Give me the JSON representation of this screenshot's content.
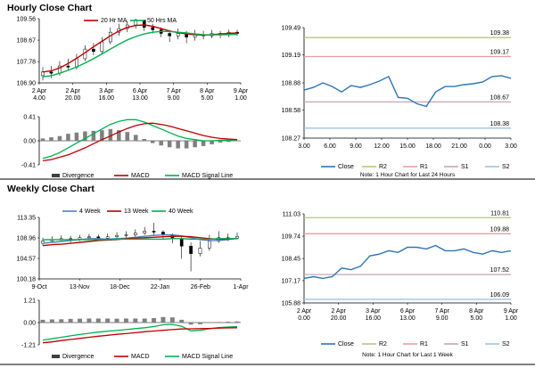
{
  "sections": {
    "hourly_title": "Hourly Close Chart",
    "weekly_title": "Weekly Close Chart"
  },
  "colors": {
    "close": "#2e75b6",
    "ma_short": "#c00000",
    "ma_long": "#00b050",
    "r2": "#b5c77e",
    "r1": "#e8a0a0",
    "s1": "#c9a6b4",
    "s2": "#9dc3e6",
    "divergence": "#808080",
    "ma4": "#4f81bd",
    "ma40": "#00b050"
  },
  "chart_data": [
    {
      "id": "hourly_price",
      "type": "candlestick",
      "y_ticks": [
        "109.56",
        "108.67",
        "107.78",
        "106.90"
      ],
      "ylim": [
        106.9,
        109.56
      ],
      "x_ticks": [
        [
          "2 Apr",
          "4.00"
        ],
        [
          "2 Apr",
          "20.00"
        ],
        [
          "3 Apr",
          "16.00"
        ],
        [
          "6 Apr",
          "13.00"
        ],
        [
          "7 Apr",
          "9.00"
        ],
        [
          "8 Apr",
          "5.00"
        ],
        [
          "9 Apr",
          "1.00"
        ]
      ],
      "legend": [
        "20 Hr MA",
        "50 Hrs MA"
      ],
      "ma20": [
        107.35,
        107.4,
        107.52,
        107.7,
        107.92,
        108.15,
        108.4,
        108.62,
        108.85,
        109.05,
        109.2,
        109.28,
        109.3,
        109.25,
        109.15,
        109.05,
        108.98,
        108.93,
        108.9,
        108.88,
        108.9,
        108.93,
        108.95,
        108.97
      ],
      "ma50": [
        107.15,
        107.2,
        107.3,
        107.42,
        107.56,
        107.72,
        107.9,
        108.1,
        108.3,
        108.5,
        108.68,
        108.82,
        108.93,
        109.0,
        109.03,
        109.03,
        109.0,
        108.97,
        108.93,
        108.9,
        108.89,
        108.89,
        108.9,
        108.91
      ],
      "candles": [
        [
          107.2,
          107.35,
          107.55,
          107.0
        ],
        [
          107.35,
          107.3,
          107.6,
          107.1
        ],
        [
          107.3,
          107.6,
          107.8,
          107.2
        ],
        [
          107.6,
          107.55,
          107.9,
          107.4
        ],
        [
          107.55,
          107.9,
          108.1,
          107.45
        ],
        [
          107.9,
          108.3,
          108.45,
          107.8
        ],
        [
          108.3,
          108.2,
          108.55,
          108.05
        ],
        [
          108.2,
          108.6,
          108.8,
          108.1
        ],
        [
          108.6,
          109.0,
          109.2,
          108.5
        ],
        [
          109.0,
          109.15,
          109.35,
          108.85
        ],
        [
          109.15,
          109.3,
          109.45,
          109.0
        ],
        [
          109.3,
          109.5,
          109.56,
          109.15
        ],
        [
          109.5,
          109.2,
          109.52,
          109.05
        ],
        [
          109.2,
          109.1,
          109.35,
          108.95
        ],
        [
          109.1,
          108.95,
          109.2,
          108.8
        ],
        [
          108.95,
          108.85,
          109.1,
          108.6
        ],
        [
          108.85,
          108.95,
          109.15,
          108.7
        ],
        [
          108.95,
          108.8,
          109.05,
          108.55
        ],
        [
          108.8,
          108.9,
          109.1,
          108.65
        ],
        [
          108.9,
          108.85,
          109.05,
          108.7
        ],
        [
          108.85,
          108.95,
          109.1,
          108.75
        ],
        [
          108.95,
          108.9,
          109.05,
          108.75
        ],
        [
          108.9,
          109.0,
          109.1,
          108.8
        ],
        [
          109.0,
          108.95,
          109.1,
          108.85
        ]
      ]
    },
    {
      "id": "hourly_macd",
      "type": "line_bar",
      "y_ticks": [
        "0.41",
        "0.00",
        "-0.41"
      ],
      "ylim": [
        -0.41,
        0.41
      ],
      "legend": [
        "Divergence",
        "MACD",
        "MACD Signal Line"
      ],
      "macd": [
        -0.3,
        -0.26,
        -0.2,
        -0.12,
        -0.04,
        0.04,
        0.12,
        0.2,
        0.28,
        0.33,
        0.36,
        0.36,
        0.32,
        0.26,
        0.2,
        0.14,
        0.08,
        0.04,
        0.02,
        0.0,
        0.0,
        0.01,
        0.01,
        0.02
      ],
      "signal": [
        -0.34,
        -0.32,
        -0.28,
        -0.24,
        -0.18,
        -0.12,
        -0.05,
        0.02,
        0.08,
        0.15,
        0.21,
        0.26,
        0.29,
        0.3,
        0.28,
        0.25,
        0.21,
        0.17,
        0.13,
        0.09,
        0.06,
        0.04,
        0.03,
        0.02
      ],
      "divergence": [
        0.04,
        0.06,
        0.08,
        0.12,
        0.14,
        0.16,
        0.17,
        0.18,
        0.2,
        0.18,
        0.15,
        0.1,
        0.03,
        -0.04,
        -0.08,
        -0.11,
        -0.13,
        -0.13,
        -0.11,
        -0.09,
        -0.06,
        -0.03,
        -0.02,
        0.0
      ]
    },
    {
      "id": "hourly_close_levels",
      "type": "line",
      "y_ticks": [
        "109.49",
        "109.19",
        "108.88",
        "108.58",
        "108.27"
      ],
      "ylim": [
        108.27,
        109.49
      ],
      "x_ticks": [
        "3.00",
        "6.00",
        "9.00",
        "12.00",
        "15.00",
        "18.00",
        "21.00",
        "0.00",
        "3.00"
      ],
      "levels": [
        {
          "name": "R2",
          "value": 109.38,
          "label": "109.38"
        },
        {
          "name": "R1",
          "value": 109.17,
          "label": "109.17"
        },
        {
          "name": "S1",
          "value": 108.67,
          "label": "108.67"
        },
        {
          "name": "S2",
          "value": 108.38,
          "label": "108.38"
        }
      ],
      "close": [
        108.8,
        108.83,
        108.88,
        108.84,
        108.78,
        108.85,
        108.83,
        108.86,
        108.9,
        108.95,
        108.72,
        108.71,
        108.65,
        108.62,
        108.78,
        108.84,
        108.84,
        108.86,
        108.87,
        108.89,
        108.95,
        108.96,
        108.93
      ],
      "legend": [
        "Close",
        "R2",
        "R1",
        "S1",
        "S2"
      ],
      "note": "Note: 1 Hour Chart for Last 24 Hours"
    },
    {
      "id": "weekly_price",
      "type": "candlestick",
      "y_ticks": [
        "113.35",
        "108.96",
        "104.57",
        "100.18"
      ],
      "ylim": [
        100.18,
        113.35
      ],
      "x_ticks": [
        "9-Oct",
        "13-Nov",
        "18-Dec",
        "22-Jan",
        "26-Feb",
        "1-Apr"
      ],
      "legend": [
        "4 Week",
        "13 Week",
        "40 Week"
      ],
      "ma4": [
        107.8,
        108.0,
        108.2,
        108.4,
        108.6,
        108.8,
        108.8,
        108.7,
        108.8,
        108.9,
        109.1,
        109.3,
        109.5,
        109.6,
        109.6,
        109.4,
        109.0,
        108.6,
        108.4,
        108.4,
        108.6,
        108.9
      ],
      "ma13": [
        107.3,
        107.5,
        107.6,
        107.8,
        108.0,
        108.2,
        108.4,
        108.5,
        108.6,
        108.8,
        108.9,
        109.0,
        109.1,
        109.2,
        109.3,
        109.3,
        109.2,
        109.0,
        108.8,
        108.7,
        108.7,
        108.8
      ],
      "ma40": [
        108.6,
        108.6,
        108.6,
        108.6,
        108.6,
        108.6,
        108.6,
        108.6,
        108.7,
        108.7,
        108.7,
        108.7,
        108.7,
        108.7,
        108.8,
        108.8,
        108.7,
        108.7,
        108.7,
        108.8,
        108.8,
        108.8
      ],
      "candles": [
        [
          107.8,
          108.3,
          109.0,
          107.3
        ],
        [
          108.3,
          108.6,
          109.3,
          107.9
        ],
        [
          108.6,
          108.8,
          109.5,
          108.2
        ],
        [
          108.8,
          108.7,
          109.4,
          108.0
        ],
        [
          108.7,
          109.0,
          109.6,
          108.3
        ],
        [
          109.0,
          109.2,
          109.8,
          108.6
        ],
        [
          109.2,
          108.9,
          109.7,
          108.4
        ],
        [
          108.9,
          109.2,
          109.9,
          108.5
        ],
        [
          109.2,
          109.5,
          110.2,
          108.9
        ],
        [
          109.5,
          109.6,
          110.4,
          108.9
        ],
        [
          109.6,
          110.0,
          110.8,
          109.2
        ],
        [
          110.0,
          110.4,
          111.3,
          109.6
        ],
        [
          110.4,
          110.2,
          112.2,
          109.5
        ],
        [
          110.2,
          109.6,
          110.6,
          108.8
        ],
        [
          109.6,
          108.8,
          109.9,
          107.8
        ],
        [
          108.8,
          107.2,
          109.2,
          104.5
        ],
        [
          107.2,
          105.6,
          108.0,
          101.8
        ],
        [
          105.6,
          106.8,
          108.3,
          105.0
        ],
        [
          106.8,
          108.3,
          109.6,
          106.2
        ],
        [
          108.3,
          109.0,
          110.4,
          107.9
        ],
        [
          109.0,
          108.9,
          109.9,
          108.3
        ],
        [
          108.9,
          109.3,
          110.1,
          108.6
        ]
      ]
    },
    {
      "id": "weekly_macd",
      "type": "line_bar",
      "y_ticks": [
        "1.21",
        "0.00",
        "-1.21"
      ],
      "ylim": [
        -1.21,
        1.21
      ],
      "legend": [
        "Divergence",
        "MACD",
        "MACD Signal Line"
      ],
      "macd": [
        -0.95,
        -0.88,
        -0.8,
        -0.72,
        -0.65,
        -0.58,
        -0.52,
        -0.47,
        -0.43,
        -0.38,
        -0.33,
        -0.28,
        -0.22,
        -0.12,
        -0.1,
        -0.2,
        -0.45,
        -0.42,
        -0.34,
        -0.27,
        -0.24,
        -0.22
      ],
      "signal": [
        -1.1,
        -1.05,
        -0.98,
        -0.92,
        -0.86,
        -0.8,
        -0.74,
        -0.69,
        -0.64,
        -0.6,
        -0.55,
        -0.5,
        -0.46,
        -0.42,
        -0.38,
        -0.35,
        -0.34,
        -0.33,
        -0.32,
        -0.3,
        -0.29,
        -0.28
      ],
      "divergence": [
        0.15,
        0.17,
        0.18,
        0.2,
        0.21,
        0.22,
        0.22,
        0.22,
        0.21,
        0.22,
        0.22,
        0.22,
        0.24,
        0.3,
        0.28,
        0.15,
        -0.11,
        -0.09,
        -0.02,
        0.03,
        0.05,
        0.06
      ]
    },
    {
      "id": "weekly_close_levels",
      "type": "line",
      "y_ticks": [
        "111.03",
        "109.74",
        "108.45",
        "107.17",
        "105.88"
      ],
      "ylim": [
        105.88,
        111.03
      ],
      "x_ticks": [
        [
          "2 Apr",
          "0.00"
        ],
        [
          "2 Apr",
          "20.00"
        ],
        [
          "3 Apr",
          "16.00"
        ],
        [
          "6 Apr",
          "13.00"
        ],
        [
          "7 Apr",
          "9.00"
        ],
        [
          "8 Apr",
          "5.00"
        ],
        [
          "9 Apr",
          "1.00"
        ]
      ],
      "levels": [
        {
          "name": "R2",
          "value": 110.81,
          "label": "110.81"
        },
        {
          "name": "R1",
          "value": 109.88,
          "label": "109.88"
        },
        {
          "name": "S1",
          "value": 107.52,
          "label": "107.52"
        },
        {
          "name": "S2",
          "value": 106.09,
          "label": "106.09"
        }
      ],
      "close": [
        107.3,
        107.4,
        107.3,
        107.4,
        107.9,
        107.8,
        108.0,
        108.6,
        108.7,
        108.9,
        108.8,
        109.1,
        109.1,
        109.0,
        109.2,
        108.9,
        108.9,
        109.0,
        108.8,
        108.7,
        108.9,
        108.8,
        108.9
      ],
      "legend": [
        "Close",
        "R2",
        "R1",
        "S1",
        "S2"
      ],
      "note": "Note: 1 Hour Chart for Last 1 Week"
    }
  ]
}
